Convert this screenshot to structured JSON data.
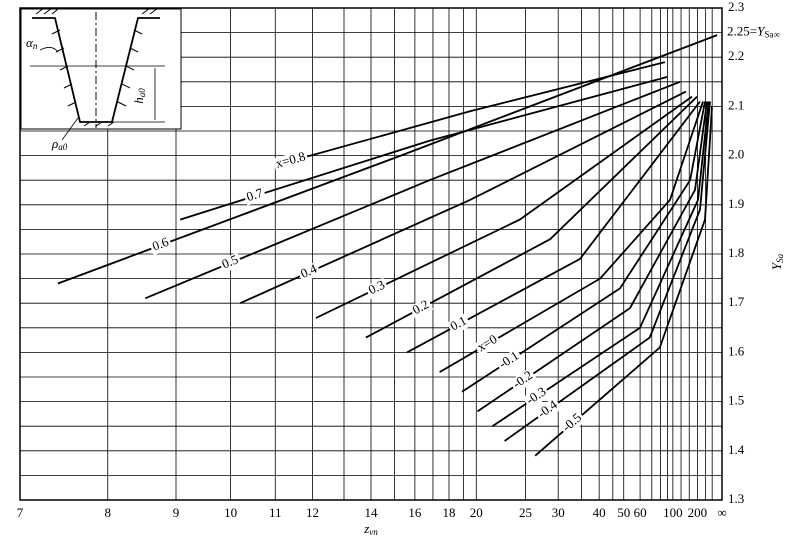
{
  "chart_data": {
    "type": "line",
    "xscale": "reciprocal",
    "xlim": [
      7,
      null
    ],
    "ylim": [
      1.3,
      2.3
    ],
    "xticks": [
      7,
      8,
      9,
      10,
      11,
      12,
      14,
      16,
      18,
      20,
      25,
      30,
      40,
      50,
      60,
      100,
      200,
      {
        "value": null,
        "label": "∞"
      }
    ],
    "xgrid": [
      13,
      15,
      17,
      19,
      35,
      45,
      70,
      80,
      90,
      120,
      150,
      300,
      500
    ],
    "yticks": [
      1.3,
      1.4,
      1.5,
      1.6,
      1.7,
      1.8,
      1.9,
      2.0,
      2.1,
      2.2,
      2.3
    ],
    "ygrid": [
      1.35,
      1.45,
      1.55,
      1.65,
      1.75,
      1.85,
      1.95,
      2.05,
      2.15,
      2.25
    ],
    "grid": true,
    "color": "#000000",
    "x_label": {
      "main": "z",
      "sub": "vn"
    },
    "y_label": {
      "main": "Y",
      "sub": "Sa"
    },
    "annotation": {
      "y": 2.25,
      "prefix": "2.25=",
      "main": "Y",
      "sub": "Sa∞"
    },
    "inset": {
      "alpha": "α",
      "alpha_sub": "n",
      "h": "h",
      "h_sub": "a0",
      "rho": "ρ",
      "rho_sub": "a0"
    },
    "series": [
      {
        "name": "x=0.8",
        "x": [
          11,
          19.5,
          86
        ],
        "values": [
          1.98,
          2.09,
          2.19
        ]
      },
      {
        "name": "0.7",
        "x": [
          9.07,
          16.8,
          90
        ],
        "values": [
          1.87,
          2.03,
          2.16
        ]
      },
      {
        "name": "0.6",
        "x": [
          7.4,
          15.3,
          1000
        ],
        "values": [
          1.74,
          2.0,
          2.245
        ]
      },
      {
        "name": "0.5",
        "x": [
          8.52,
          16.8,
          117
        ],
        "values": [
          1.71,
          1.95,
          2.15
        ]
      },
      {
        "name": "0.4",
        "x": [
          10.2,
          19.5,
          136
        ],
        "values": [
          1.7,
          1.91,
          2.13
        ]
      },
      {
        "name": "0.3",
        "x": [
          12.1,
          24.3,
          164
        ],
        "values": [
          1.67,
          1.87,
          2.12
        ]
      },
      {
        "name": "0.2",
        "x": [
          13.8,
          28.6,
          197
        ],
        "values": [
          1.63,
          1.83,
          2.12
        ]
      },
      {
        "name": "0.1",
        "x": [
          15.6,
          34.6,
          223
        ],
        "values": [
          1.6,
          1.79,
          2.11
        ]
      },
      {
        "name": "x=0",
        "x": [
          17.4,
          40.3,
          94.5,
          258
        ],
        "values": [
          1.56,
          1.75,
          1.91,
          2.11
        ]
      },
      {
        "name": "-0.1",
        "x": [
          18.9,
          48.2,
          154,
          289
        ],
        "values": [
          1.52,
          1.73,
          1.95,
          2.11
        ]
      },
      {
        "name": "-0.2",
        "x": [
          20.1,
          53.4,
          182,
          328
        ],
        "values": [
          1.48,
          1.69,
          1.93,
          2.11
        ]
      },
      {
        "name": "-0.3",
        "x": [
          21.4,
          59.9,
          205,
          370
        ],
        "values": [
          1.45,
          1.65,
          1.91,
          2.11
        ]
      },
      {
        "name": "-0.4",
        "x": [
          22.6,
          68,
          223,
          410
        ],
        "values": [
          1.42,
          1.63,
          1.89,
          2.11
        ]
      },
      {
        "name": "-0.5",
        "x": [
          26.3,
          79,
          289,
          491
        ],
        "values": [
          1.39,
          1.61,
          1.87,
          2.1
        ]
      }
    ]
  }
}
